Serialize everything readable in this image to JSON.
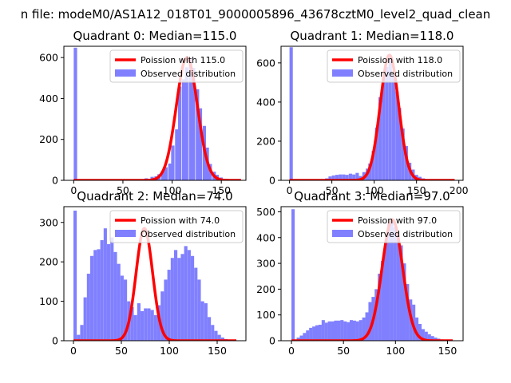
{
  "figure": {
    "suptitle": "n file: modeM0/AS1A12_018T01_9000005896_43678cztM0_level2_quad_clean",
    "colors": {
      "bars": "#8080ff",
      "fit_line": "#ff0000",
      "axes": "#000000",
      "background": "#ffffff"
    }
  },
  "chart_data": [
    {
      "type": "bar",
      "title": "Quadrant 0: Median=115.0",
      "xlim": [
        -10,
        175
      ],
      "ylim": [
        0,
        655
      ],
      "xticks": [
        0,
        50,
        100,
        150
      ],
      "yticks": [
        0,
        200,
        400,
        600
      ],
      "legend": {
        "position": "top-right",
        "entries": [
          "Poission with 115.0",
          "Observed distribution"
        ]
      },
      "series": [
        {
          "name": "Observed distribution",
          "type": "histogram",
          "bin_width": 3.45,
          "bins": [
            [
              0,
              648
            ],
            [
              72,
              10
            ],
            [
              78,
              17
            ],
            [
              82,
              20
            ],
            [
              85,
              30
            ],
            [
              89,
              44
            ],
            [
              92,
              64
            ],
            [
              96,
              82
            ],
            [
              99,
              170
            ],
            [
              103,
              249
            ],
            [
              106,
              458
            ],
            [
              110,
              494
            ],
            [
              113,
              552
            ],
            [
              117,
              600
            ],
            [
              120,
              550
            ],
            [
              124,
              445
            ],
            [
              127,
              352
            ],
            [
              131,
              266
            ],
            [
              134,
              160
            ],
            [
              137,
              80
            ],
            [
              141,
              42
            ],
            [
              144,
              27
            ],
            [
              148,
              14
            ],
            [
              151,
              8
            ],
            [
              155,
              3
            ]
          ]
        },
        {
          "name": "Poission with 115.0",
          "type": "line",
          "mu": 115.0,
          "x_range": [
            0,
            170
          ]
        }
      ]
    },
    {
      "type": "bar",
      "title": "Quadrant 1: Median=118.0",
      "xlim": [
        -10,
        205
      ],
      "ylim": [
        0,
        685
      ],
      "xticks": [
        0,
        50,
        100,
        150,
        200
      ],
      "yticks": [
        0,
        200,
        400,
        600
      ],
      "legend": {
        "position": "top-right",
        "entries": [
          "Poission with 118.0",
          "Observed distribution"
        ]
      },
      "series": [
        {
          "name": "Observed distribution",
          "type": "histogram",
          "bin_width": 3.9,
          "bins": [
            [
              0,
              680
            ],
            [
              42,
              10
            ],
            [
              46,
              20
            ],
            [
              50,
              25
            ],
            [
              54,
              28
            ],
            [
              58,
              30
            ],
            [
              62,
              30
            ],
            [
              66,
              28
            ],
            [
              70,
              34
            ],
            [
              74,
              30
            ],
            [
              78,
              38
            ],
            [
              82,
              22
            ],
            [
              86,
              42
            ],
            [
              90,
              60
            ],
            [
              93,
              86
            ],
            [
              97,
              150
            ],
            [
              101,
              270
            ],
            [
              105,
              425
            ],
            [
              109,
              520
            ],
            [
              113,
              580
            ],
            [
              117,
              640
            ],
            [
              121,
              540
            ],
            [
              125,
              455
            ],
            [
              128,
              370
            ],
            [
              132,
              265
            ],
            [
              136,
              175
            ],
            [
              140,
              90
            ],
            [
              144,
              55
            ],
            [
              148,
              28
            ],
            [
              152,
              18
            ],
            [
              156,
              10
            ],
            [
              160,
              6
            ],
            [
              164,
              4
            ]
          ]
        },
        {
          "name": "Poission with 118.0",
          "type": "line",
          "mu": 118.0,
          "x_range": [
            0,
            195
          ]
        }
      ]
    },
    {
      "type": "bar",
      "title": "Quadrant 2: Median=74.0",
      "xlim": [
        -10,
        180
      ],
      "ylim": [
        0,
        340
      ],
      "xticks": [
        0,
        50,
        100,
        150
      ],
      "yticks": [
        0,
        100,
        200,
        300
      ],
      "legend": {
        "position": "top-right",
        "entries": [
          "Poission with 74.0",
          "Observed distribution"
        ]
      },
      "series": [
        {
          "name": "Observed distribution",
          "type": "histogram",
          "bin_width": 3.45,
          "bins": [
            [
              0,
              330
            ],
            [
              3.5,
              15
            ],
            [
              7,
              40
            ],
            [
              10.5,
              110
            ],
            [
              14,
              170
            ],
            [
              17.5,
              215
            ],
            [
              21,
              230
            ],
            [
              24.5,
              232
            ],
            [
              28,
              255
            ],
            [
              31.5,
              285
            ],
            [
              35,
              245
            ],
            [
              38.5,
              262
            ],
            [
              42,
              225
            ],
            [
              45.5,
              195
            ],
            [
              49,
              165
            ],
            [
              52.5,
              155
            ],
            [
              56,
              100
            ],
            [
              59.5,
              85
            ],
            [
              63,
              65
            ],
            [
              66.5,
              95
            ],
            [
              70,
              75
            ],
            [
              73.5,
              82
            ],
            [
              77,
              82
            ],
            [
              80.5,
              78
            ],
            [
              84,
              65
            ],
            [
              87.5,
              90
            ],
            [
              91,
              125
            ],
            [
              94.5,
              155
            ],
            [
              98,
              180
            ],
            [
              101.5,
              210
            ],
            [
              105,
              230
            ],
            [
              108.5,
              210
            ],
            [
              112,
              220
            ],
            [
              115.5,
              240
            ],
            [
              119,
              230
            ],
            [
              122.5,
              215
            ],
            [
              126,
              185
            ],
            [
              129.5,
              155
            ],
            [
              133,
              100
            ],
            [
              136.5,
              95
            ],
            [
              140,
              60
            ],
            [
              143.5,
              40
            ],
            [
              147,
              25
            ],
            [
              150.5,
              15
            ],
            [
              154,
              8
            ],
            [
              157.5,
              4
            ]
          ]
        },
        {
          "name": "Poission with 74.0",
          "type": "line",
          "mu": 74.0,
          "x_range": [
            0,
            170
          ]
        }
      ]
    },
    {
      "type": "bar",
      "title": "Quadrant 3: Median=97.0",
      "xlim": [
        -10,
        165
      ],
      "ylim": [
        0,
        520
      ],
      "xticks": [
        0,
        50,
        100,
        150
      ],
      "yticks": [
        0,
        100,
        200,
        300,
        400,
        500
      ],
      "legend": {
        "position": "top-right",
        "entries": [
          "Poission with 97.0",
          "Observed distribution"
        ]
      },
      "series": [
        {
          "name": "Observed distribution",
          "type": "histogram",
          "bin_width": 3.1,
          "bins": [
            [
              0,
              510
            ],
            [
              5,
              12
            ],
            [
              8,
              20
            ],
            [
              11,
              30
            ],
            [
              14,
              40
            ],
            [
              17,
              50
            ],
            [
              20,
              55
            ],
            [
              23,
              60
            ],
            [
              26,
              62
            ],
            [
              29,
              80
            ],
            [
              32,
              70
            ],
            [
              35,
              75
            ],
            [
              38,
              75
            ],
            [
              41,
              78
            ],
            [
              44,
              78
            ],
            [
              47,
              80
            ],
            [
              50,
              75
            ],
            [
              53,
              72
            ],
            [
              56,
              80
            ],
            [
              59,
              78
            ],
            [
              62,
              75
            ],
            [
              65,
              80
            ],
            [
              68,
              90
            ],
            [
              71,
              110
            ],
            [
              74,
              150
            ],
            [
              77,
              170
            ],
            [
              80,
              200
            ],
            [
              83,
              260
            ],
            [
              86,
              310
            ],
            [
              89,
              380
            ],
            [
              92,
              455
            ],
            [
              95,
              470
            ],
            [
              98,
              440
            ],
            [
              101,
              410
            ],
            [
              104,
              370
            ],
            [
              107,
              300
            ],
            [
              110,
              220
            ],
            [
              113,
              160
            ],
            [
              116,
              140
            ],
            [
              119,
              90
            ],
            [
              122,
              65
            ],
            [
              125,
              45
            ],
            [
              128,
              35
            ],
            [
              131,
              25
            ],
            [
              134,
              18
            ],
            [
              137,
              12
            ],
            [
              140,
              8
            ],
            [
              143,
              5
            ]
          ]
        },
        {
          "name": "Poission with 97.0",
          "type": "line",
          "mu": 97.0,
          "x_range": [
            0,
            155
          ]
        }
      ]
    }
  ]
}
